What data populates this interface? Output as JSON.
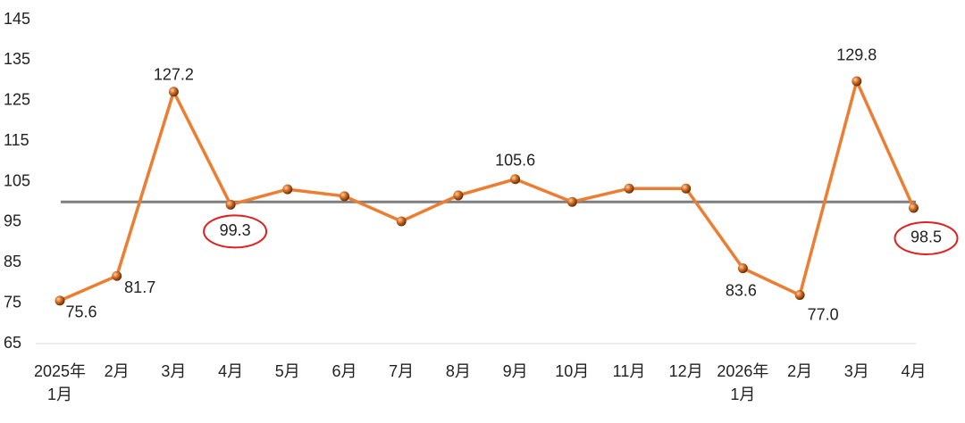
{
  "chart_data": {
    "type": "line",
    "categories": [
      "2025年\n1月",
      "2月",
      "3月",
      "4月",
      "5月",
      "6月",
      "7月",
      "8月",
      "9月",
      "10月",
      "11月",
      "12月",
      "2026年\n1月",
      "2月",
      "3月",
      "4月"
    ],
    "series": [
      {
        "color": "#ED7D31",
        "values": [
          75.6,
          81.7,
          127.2,
          99.3,
          103.1,
          101.4,
          95.2,
          101.6,
          105.6,
          100.0,
          103.3,
          103.3,
          83.6,
          77.0,
          129.8,
          98.5
        ],
        "value_labels": [
          "75.6",
          "81.7",
          "127.2",
          "99.3",
          null,
          null,
          null,
          null,
          "105.6",
          null,
          null,
          null,
          "83.6",
          "77.0",
          "129.8",
          "98.5"
        ]
      }
    ],
    "ylim": [
      65,
      145
    ],
    "yticks": [
      65,
      75,
      85,
      95,
      105,
      115,
      125,
      135,
      145
    ],
    "reference_line": 100,
    "reference_color": "#7f7f7f",
    "highlighted": [
      3,
      15
    ],
    "highlight_color": "#e02020"
  }
}
